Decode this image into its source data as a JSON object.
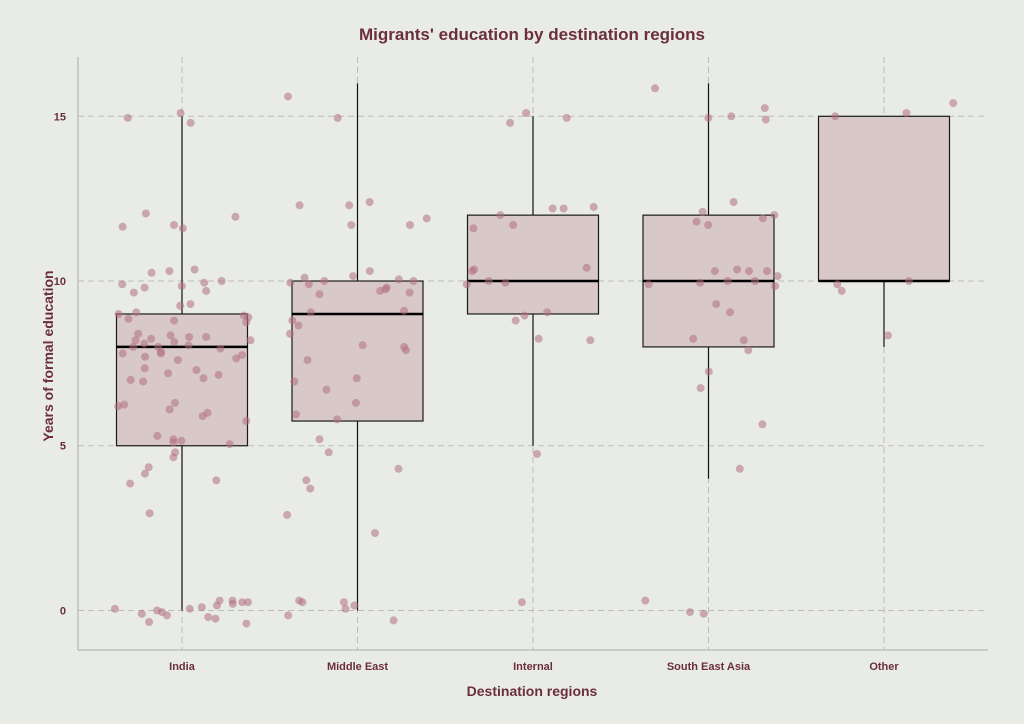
{
  "chart_data": {
    "type": "box",
    "title": "Migrants' education by destination regions",
    "xlabel": "Destination regions",
    "ylabel": "Years of formal education",
    "ylim": [
      -1.2,
      16.8
    ],
    "yticks": [
      0,
      5,
      10,
      15
    ],
    "grid": true,
    "colors": {
      "box_fill": "#d8c8c8",
      "point": "#b0707f",
      "text": "#6b2e3a",
      "background": "#e9ece6"
    },
    "categories": [
      "India",
      "Middle East",
      "Internal",
      "South East Asia",
      "Other"
    ],
    "boxes": [
      {
        "category": "India",
        "min": 0,
        "q1": 5,
        "median": 8,
        "q3": 9,
        "max": 15
      },
      {
        "category": "Middle East",
        "min": 0,
        "q1": 5.75,
        "median": 9,
        "q3": 10,
        "max": 16
      },
      {
        "category": "Internal",
        "min": 5,
        "q1": 9,
        "median": 10,
        "q3": 12,
        "max": 15
      },
      {
        "category": "South East Asia",
        "min": 4,
        "q1": 8,
        "median": 10,
        "q3": 12,
        "max": 16
      },
      {
        "category": "Other",
        "min": 8,
        "q1": 10,
        "median": 10,
        "q3": 15,
        "max": 15
      }
    ],
    "points": [
      {
        "category": "India",
        "values": [
          15.1,
          14.8,
          14.95,
          12.05,
          11.7,
          11.6,
          11.65,
          11.95,
          10.35,
          10.3,
          10.25,
          10.0,
          9.95,
          9.9,
          9.85,
          9.8,
          9.7,
          9.65,
          9.3,
          9.25,
          9.05,
          9.0,
          8.95,
          8.9,
          8.85,
          8.8,
          8.75,
          8.4,
          8.35,
          8.3,
          8.3,
          8.25,
          8.2,
          8.2,
          8.15,
          8.1,
          8.05,
          8.0,
          8.0,
          7.95,
          7.85,
          7.8,
          7.8,
          7.75,
          7.7,
          7.65,
          7.6,
          7.35,
          7.3,
          7.2,
          7.15,
          7.05,
          7.0,
          6.95,
          6.3,
          6.25,
          6.2,
          6.1,
          6.0,
          5.9,
          5.75,
          5.3,
          5.2,
          5.15,
          5.1,
          5.05,
          4.8,
          4.65,
          4.35,
          4.15,
          3.95,
          3.85,
          2.95,
          0.3,
          0.3,
          0.25,
          0.25,
          0.2,
          0.15,
          0.1,
          0.05,
          0.05,
          0.0,
          -0.05,
          -0.1,
          -0.15,
          -0.2,
          -0.25,
          -0.35,
          -0.4
        ]
      },
      {
        "category": "Middle East",
        "values": [
          15.6,
          14.95,
          12.4,
          12.3,
          12.3,
          11.9,
          11.7,
          11.7,
          10.3,
          10.15,
          10.1,
          10.05,
          10.0,
          10.0,
          9.95,
          9.9,
          9.8,
          9.75,
          9.7,
          9.65,
          9.6,
          9.1,
          9.05,
          8.8,
          8.65,
          8.4,
          8.05,
          8.0,
          7.9,
          7.6,
          7.05,
          6.95,
          6.7,
          6.3,
          5.95,
          5.8,
          5.2,
          4.8,
          4.3,
          3.95,
          3.7,
          2.9,
          2.35,
          0.3,
          0.25,
          0.25,
          0.15,
          0.05,
          -0.15,
          -0.3
        ]
      },
      {
        "category": "Internal",
        "values": [
          15.1,
          14.95,
          14.8,
          12.25,
          12.2,
          12.2,
          12.0,
          11.7,
          11.6,
          10.4,
          10.35,
          10.3,
          10.0,
          9.95,
          9.9,
          9.05,
          8.95,
          8.8,
          8.25,
          8.2,
          4.75,
          0.25
        ]
      },
      {
        "category": "South East Asia",
        "values": [
          15.85,
          15.25,
          15.0,
          14.95,
          14.9,
          12.4,
          12.1,
          12.0,
          11.9,
          11.8,
          11.7,
          10.35,
          10.3,
          10.3,
          10.3,
          10.15,
          10.0,
          10.0,
          9.95,
          9.9,
          9.85,
          9.3,
          9.05,
          8.25,
          8.2,
          7.9,
          7.25,
          6.75,
          5.65,
          4.3,
          0.3,
          -0.05,
          -0.1
        ]
      },
      {
        "category": "Other",
        "values": [
          15.4,
          15.1,
          15.0,
          10.0,
          9.9,
          9.7,
          8.35
        ]
      }
    ]
  }
}
